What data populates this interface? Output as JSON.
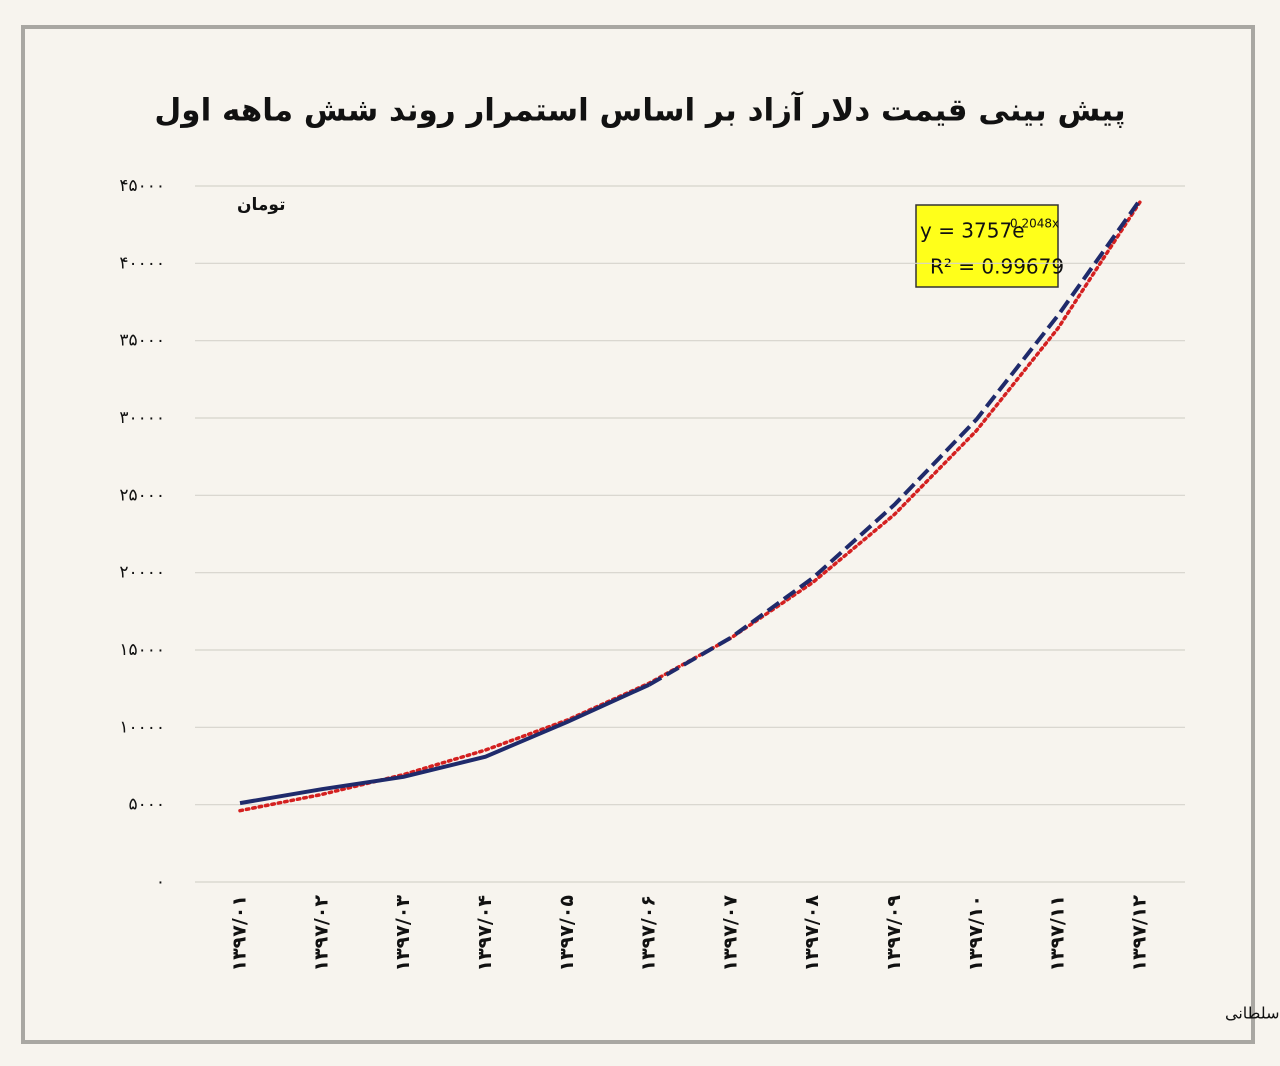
{
  "chart_data": {
    "type": "line",
    "title": "پیش بینی قیمت دلار آزاد بر اساس استمرار روند شش ماهه اول",
    "y_label": "تومان",
    "categories": [
      "۱۳۹۷/۰۱",
      "۱۳۹۷/۰۲",
      "۱۳۹۷/۰۳",
      "۱۳۹۷/۰۴",
      "۱۳۹۷/۰۵",
      "۱۳۹۷/۰۶",
      "۱۳۹۷/۰۷",
      "۱۳۹۷/۰۸",
      "۱۳۹۷/۰۹",
      "۱۳۹۷/۱۰",
      "۱۳۹۷/۱۱",
      "۱۳۹۷/۱۲"
    ],
    "series": [
      {
        "color": "#1f2a6b",
        "style": "solid",
        "values": [
          5100,
          6000,
          6800,
          8100,
          10350,
          12750,
          null,
          null,
          null,
          null,
          null,
          null
        ]
      },
      {
        "color": "#1f2a6b",
        "style": "dashed",
        "values": [
          null,
          null,
          null,
          null,
          null,
          12750,
          15800,
          19650,
          24400,
          29900,
          36650,
          44100
        ]
      },
      {
        "color": "#d42020",
        "style": "dotted",
        "values": [
          4612,
          5661,
          6949,
          8530,
          10470,
          12852,
          15776,
          19365,
          23770,
          29178,
          35816,
          43964
        ]
      }
    ],
    "ylim": [
      0,
      45000
    ],
    "yticks": [
      {
        "value": 0,
        "label": "۰"
      },
      {
        "value": 5000,
        "label": "۵۰۰۰"
      },
      {
        "value": 10000,
        "label": "۱۰۰۰۰"
      },
      {
        "value": 15000,
        "label": "۱۵۰۰۰"
      },
      {
        "value": 20000,
        "label": "۲۰۰۰۰"
      },
      {
        "value": 25000,
        "label": "۲۵۰۰۰"
      },
      {
        "value": 30000,
        "label": "۳۰۰۰۰"
      },
      {
        "value": 35000,
        "label": "۳۵۰۰۰"
      },
      {
        "value": 40000,
        "label": "۴۰۰۰۰"
      },
      {
        "value": 45000,
        "label": "۴۵۰۰۰"
      }
    ],
    "grid": true,
    "equation": {
      "base": "y = 3757e",
      "exponent": "0.2048x",
      "r2": "R² = 0.99679"
    },
    "credit": "تحلیل و استنتاج: حسین راغفر و احسان سلطانی"
  }
}
